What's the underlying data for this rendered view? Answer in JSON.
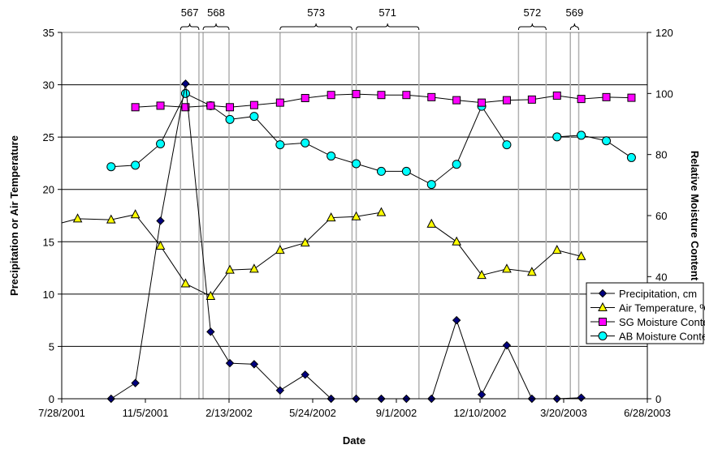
{
  "chart_data": {
    "type": "line",
    "xlabel": "Date",
    "ylabel_left": "Precipitation or Air Temperature",
    "ylabel_right": "Relative Moisture Content",
    "xlim": [
      "2001-07-28",
      "2003-06-28"
    ],
    "ylim_left": [
      0,
      35
    ],
    "ylim_right": [
      0,
      120
    ],
    "x_tick_labels": [
      "7/28/2001",
      "11/5/2001",
      "2/13/2002",
      "5/24/2002",
      "9/1/2002",
      "12/10/2002",
      "3/20/2003",
      "6/28/2003"
    ],
    "y_left_ticks": [
      "0",
      "5",
      "10",
      "15",
      "20",
      "25",
      "30",
      "35"
    ],
    "y_right_ticks": [
      "0",
      "20",
      "40",
      "60",
      "80",
      "100",
      "120"
    ],
    "grid": "horizontal",
    "legend_position": "bottom-right",
    "series": [
      {
        "name": "Precipitation, cm",
        "axis": "left",
        "color": "#000080",
        "marker": "diamond",
        "line": true,
        "points": [
          [
            "2001-09-25",
            0
          ],
          [
            "2001-10-24",
            1.5
          ],
          [
            "2001-11-23",
            17
          ],
          [
            "2001-12-23",
            30.1
          ],
          [
            "2002-01-22",
            6.4
          ],
          [
            "2002-02-14",
            3.4
          ],
          [
            "2002-03-15",
            3.3
          ],
          [
            "2002-04-15",
            0.8
          ],
          [
            "2002-05-15",
            2.3
          ],
          [
            "2002-06-15",
            0
          ],
          [
            "2002-07-15",
            0
          ],
          [
            "2002-08-14",
            0
          ],
          [
            "2002-09-13",
            0
          ],
          [
            "2002-10-13",
            0
          ],
          [
            "2002-11-12",
            7.5
          ],
          [
            "2002-12-12",
            0.4
          ],
          [
            "2003-01-11",
            5.1
          ],
          [
            "2003-02-10",
            0
          ],
          [
            "2003-03-12",
            0
          ],
          [
            "2003-04-10",
            0.1
          ]
        ]
      },
      {
        "name": "Air Temperature, ºC",
        "axis": "left",
        "color": "#FFFF00",
        "marker": "triangle",
        "line": true,
        "segments": [
          [
            [
              "2001-07-28",
              16.8
            ],
            [
              "2001-08-16",
              17.2
            ],
            [
              "2001-09-25",
              17.1
            ],
            [
              "2001-10-24",
              17.6
            ],
            [
              "2001-11-23",
              14.6
            ],
            [
              "2001-12-23",
              11.0
            ],
            [
              "2002-01-22",
              9.8
            ],
            [
              "2002-02-14",
              12.3
            ],
            [
              "2002-03-15",
              12.4
            ],
            [
              "2002-04-15",
              14.2
            ],
            [
              "2002-05-15",
              14.9
            ],
            [
              "2002-06-15",
              17.3
            ],
            [
              "2002-07-15",
              17.4
            ],
            [
              "2002-08-14",
              17.8
            ]
          ],
          [
            [
              "2002-10-13",
              16.7
            ],
            [
              "2002-11-12",
              15.0
            ],
            [
              "2002-12-12",
              11.8
            ],
            [
              "2003-01-11",
              12.4
            ],
            [
              "2003-02-10",
              12.1
            ],
            [
              "2003-03-12",
              14.2
            ],
            [
              "2003-04-10",
              13.6
            ]
          ]
        ]
      },
      {
        "name": "SG Moisture Content",
        "axis": "right",
        "color": "#FF00FF",
        "marker": "square",
        "line": true,
        "points": [
          [
            "2001-10-24",
            95.5
          ],
          [
            "2001-11-23",
            96
          ],
          [
            "2001-12-23",
            95.5
          ],
          [
            "2002-01-22",
            96
          ],
          [
            "2002-02-14",
            95.5
          ],
          [
            "2002-03-15",
            96.2
          ],
          [
            "2002-04-15",
            97
          ],
          [
            "2002-05-15",
            98.5
          ],
          [
            "2002-06-15",
            99.5
          ],
          [
            "2002-07-15",
            99.8
          ],
          [
            "2002-08-14",
            99.5
          ],
          [
            "2002-09-13",
            99.5
          ],
          [
            "2002-10-13",
            98.8
          ],
          [
            "2002-11-12",
            97.8
          ],
          [
            "2002-12-12",
            97
          ],
          [
            "2003-01-11",
            97.8
          ],
          [
            "2003-02-10",
            98
          ],
          [
            "2003-03-12",
            99.3
          ],
          [
            "2003-04-10",
            98.2
          ],
          [
            "2003-05-10",
            98.8
          ],
          [
            "2003-06-09",
            98.6
          ]
        ]
      },
      {
        "name": "AB Moisture Content",
        "axis": "right",
        "color": "#00FFFF",
        "marker": "circle",
        "line": true,
        "segments": [
          [
            [
              "2001-09-25",
              76
            ],
            [
              "2001-10-24",
              76.5
            ],
            [
              "2001-11-23",
              83.5
            ],
            [
              "2001-12-23",
              100
            ],
            [
              "2002-01-22",
              96
            ],
            [
              "2002-02-14",
              91.5
            ],
            [
              "2002-03-15",
              92.5
            ],
            [
              "2002-04-15",
              83.2
            ],
            [
              "2002-05-15",
              83.8
            ],
            [
              "2002-06-15",
              79.5
            ],
            [
              "2002-07-15",
              77
            ],
            [
              "2002-08-14",
              74.5
            ],
            [
              "2002-09-13",
              74.5
            ],
            [
              "2002-10-13",
              70.2
            ],
            [
              "2002-11-12",
              76.8
            ],
            [
              "2002-12-12",
              95.8
            ],
            [
              "2003-01-11",
              83.2
            ]
          ],
          [
            [
              "2003-03-12",
              85.8
            ],
            [
              "2003-04-10",
              86.3
            ],
            [
              "2003-05-10",
              84.5
            ],
            [
              "2003-06-09",
              79
            ]
          ]
        ]
      }
    ],
    "annotations": [
      {
        "label": "567",
        "start": "2001-12-17",
        "end": "2002-01-08"
      },
      {
        "label": "568",
        "start": "2002-01-13",
        "end": "2002-02-13"
      },
      {
        "label": "573",
        "start": "2002-04-15",
        "end": "2002-07-10"
      },
      {
        "label": "571",
        "start": "2002-07-15",
        "end": "2002-09-28"
      },
      {
        "label": "572",
        "start": "2003-01-25",
        "end": "2003-02-27"
      },
      {
        "label": "569",
        "start": "2003-03-28",
        "end": "2003-04-07"
      }
    ]
  }
}
